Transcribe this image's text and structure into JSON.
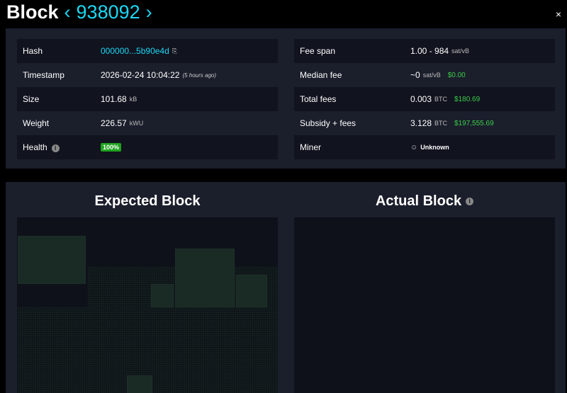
{
  "header": {
    "title": "Block",
    "prev_icon": "chevron-left-icon",
    "height": "938092",
    "next_icon": "chevron-right-icon",
    "close": "×"
  },
  "details_left": [
    {
      "label": "Hash",
      "value": "000000...5b90e4d"
    },
    {
      "label": "Timestamp",
      "value": "2026-02-24 10:04:22",
      "sub": "(5 hours ago)"
    },
    {
      "label": "Size",
      "value": "101.68",
      "unit": "kB"
    },
    {
      "label": "Weight",
      "value": "226.57",
      "unit": "kWU"
    },
    {
      "label": "Health",
      "value": "100%"
    }
  ],
  "details_right": [
    {
      "label": "Fee span",
      "value": "1.00 - 984",
      "unit": "sat/vB"
    },
    {
      "label": "Median fee",
      "value": "~0",
      "unit": "sat/vB",
      "usd": "$0.00"
    },
    {
      "label": "Total fees",
      "value": "0.003",
      "unit": "BTC",
      "usd": "$180.69"
    },
    {
      "label": "Subsidy + fees",
      "value": "3.128",
      "unit": "BTC",
      "usd": "$197,555.69"
    },
    {
      "label": "Miner",
      "value": "Unknown"
    }
  ],
  "blocks": {
    "expected": "Expected Block",
    "actual": "Actual Block"
  },
  "colors": {
    "accent": "#1bd8f4",
    "usd": "#3bcc49",
    "health": "#1fa31f"
  }
}
